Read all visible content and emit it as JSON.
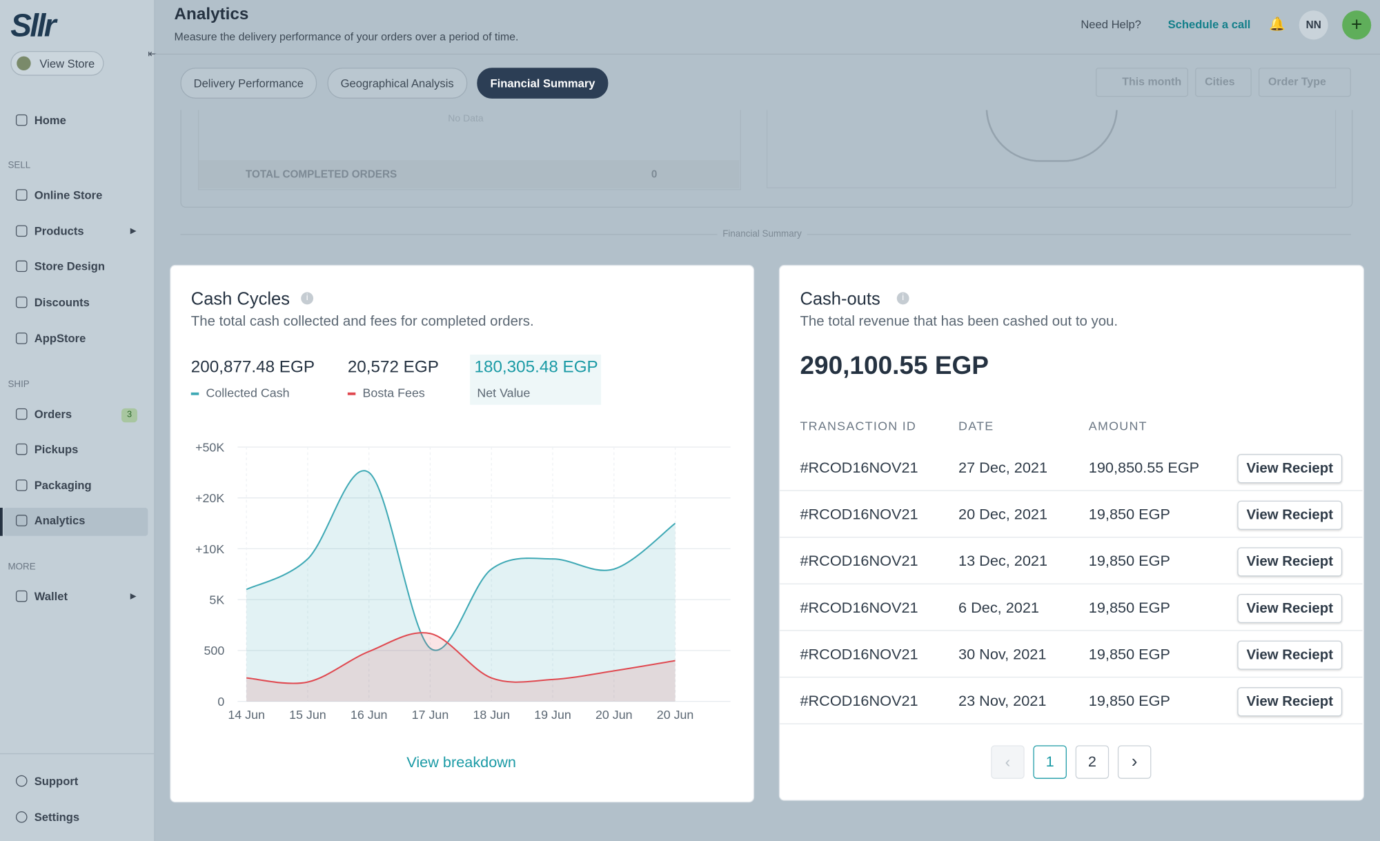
{
  "sidebar": {
    "logo": "Sllr",
    "view_store": "View Store",
    "sections": [
      {
        "items": [
          {
            "label": "Home"
          }
        ]
      },
      {
        "title": "SELL",
        "items": [
          {
            "label": "Online Store"
          },
          {
            "label": "Products"
          },
          {
            "label": "Store Design"
          },
          {
            "label": "Discounts"
          },
          {
            "label": "AppStore"
          }
        ]
      },
      {
        "title": "SHIP",
        "items": [
          {
            "label": "Orders",
            "badge": 3
          },
          {
            "label": "Pickups"
          },
          {
            "label": "Packaging"
          },
          {
            "label": "Analytics"
          }
        ]
      },
      {
        "title": "MORE",
        "items": [
          {
            "label": "Wallet"
          }
        ]
      }
    ],
    "footer": [
      {
        "label": "Support"
      },
      {
        "label": "Settings"
      }
    ]
  },
  "header": {
    "title": "Analytics",
    "subtitle": "Measure the delivery performance of your orders over a period of time.",
    "help": "Need Help?",
    "schedule": "Schedule a call",
    "avatar": "NN"
  },
  "tabs": [
    "Delivery Performance",
    "Geographical Analysis",
    "Financial Summary"
  ],
  "filters": [
    "This month",
    "Cities",
    "Order Type"
  ],
  "background": {
    "no_data": "No Data",
    "total_label": "TOTAL COMPLETED ORDERS",
    "total_value": 0,
    "divider": "Financial Summary"
  },
  "cash_cycles": {
    "title": "Cash Cycles",
    "subtitle": "The total cash collected and fees for completed orders.",
    "totals": [
      "200,877.48 EGP",
      "20,572 EGP",
      "180,305.48 EGP"
    ],
    "net_label": "Net Value",
    "link": "View breakdown"
  },
  "chart_data": {
    "type": "area",
    "categories": [
      "14 Jun",
      "15 Jun",
      "16 Jun",
      "17 Jun",
      "18 Jun",
      "19 Jun",
      "20 Jun",
      "20 Jun"
    ],
    "series": [
      {
        "name": "Collected Cash",
        "color": "#3fa9b5",
        "values": [
          6000,
          9000,
          35000,
          700,
          8000,
          9000,
          8000,
          15000
        ]
      },
      {
        "name": "Bosta Fees",
        "color": "#e0484f",
        "values": [
          230,
          190,
          490,
          2000,
          230,
          215,
          300,
          400
        ]
      }
    ],
    "ylim": [
      0,
      50000
    ],
    "yticks": [
      0,
      500,
      {
        "value": 5000,
        "label": "5K"
      },
      {
        "value": 10000,
        "label": "+10K"
      },
      {
        "value": 20000,
        "label": "+20K"
      },
      {
        "value": 50000,
        "label": "+50K"
      }
    ],
    "grid": true
  },
  "cash_outs": {
    "title": "Cash-outs",
    "subtitle": "The total revenue that has been cashed out to you.",
    "total": "290,100.55 EGP",
    "columns": [
      "TRANSACTION ID",
      "DATE",
      "AMOUNT"
    ],
    "rows": [
      [
        "#RCOD16NOV21",
        "27 Dec, 2021",
        "190,850.55 EGP"
      ],
      [
        "#RCOD16NOV21",
        "20 Dec, 2021",
        "19,850 EGP"
      ],
      [
        "#RCOD16NOV21",
        "13 Dec, 2021",
        "19,850 EGP"
      ],
      [
        "#RCOD16NOV21",
        "6 Dec, 2021",
        "19,850 EGP"
      ],
      [
        "#RCOD16NOV21",
        "30 Nov, 2021",
        "19,850 EGP"
      ],
      [
        "#RCOD16NOV21",
        "23 Nov, 2021",
        "19,850 EGP"
      ]
    ],
    "action": "View Reciept",
    "pages": [
      1,
      2
    ]
  }
}
